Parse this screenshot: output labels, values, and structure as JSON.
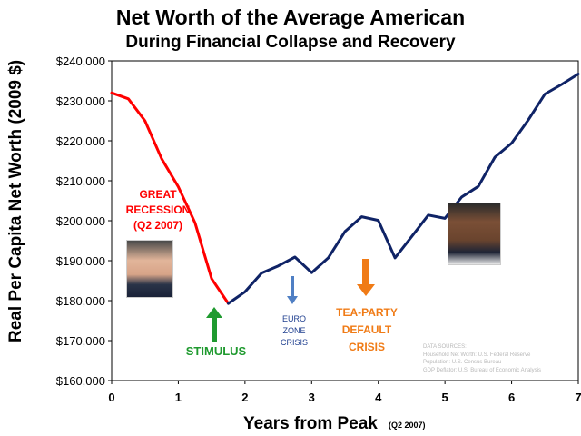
{
  "chart_data": {
    "type": "line",
    "title": "Net Worth of the Average American",
    "subtitle": "During Financial Collapse and Recovery",
    "xlabel": "Years from Peak",
    "xlabel_note": "(Q2 2007)",
    "ylabel": "Real Per Capita Net Worth (2009 $)",
    "xlim": [
      0,
      7
    ],
    "ylim": [
      160000,
      240000
    ],
    "xticks": [
      "0",
      "1",
      "2",
      "3",
      "4",
      "5",
      "6",
      "7"
    ],
    "xtick_values": [
      0,
      1,
      2,
      3,
      4,
      5,
      6,
      7
    ],
    "yticks": [
      "$160,000",
      "$170,000",
      "$180,000",
      "$190,000",
      "$200,000",
      "$210,000",
      "$220,000",
      "$230,000",
      "$240,000"
    ],
    "ytick_values": [
      160000,
      170000,
      180000,
      190000,
      200000,
      210000,
      220000,
      230000,
      240000
    ],
    "grid": false,
    "series": [
      {
        "color": "#ff0000",
        "x": [
          0,
          0.25,
          0.5,
          0.75,
          1.0,
          1.25,
          1.5,
          1.75
        ],
        "y": [
          232000,
          230500,
          225000,
          215500,
          208500,
          199500,
          185500,
          179300
        ]
      },
      {
        "color": "#0f2366",
        "x": [
          1.75,
          2.0,
          2.25,
          2.5,
          2.75,
          3.0,
          3.25,
          3.5,
          3.75,
          4.0,
          4.25,
          4.5,
          4.75,
          5.0,
          5.25,
          5.5,
          5.75,
          6.0,
          6.25,
          6.5,
          6.75,
          7.0
        ],
        "y": [
          179300,
          182200,
          186900,
          188700,
          190900,
          187000,
          190700,
          197300,
          201000,
          200100,
          190700,
          196000,
          201400,
          200600,
          205900,
          208600,
          215900,
          219400,
          225200,
          231700,
          234100,
          236700
        ]
      }
    ],
    "annotations": {
      "great_recession": [
        "GREAT",
        "RECESSION",
        "(Q2 2007)"
      ],
      "stimulus": "STIMULUS",
      "euro_zone": [
        "EURO",
        "ZONE",
        "CRISIS"
      ],
      "tea_party": [
        "TEA-PARTY",
        "DEFAULT",
        "CRISIS"
      ],
      "sources": [
        "DATA SOURCES:",
        "Household Net Worth: U.S. Federal Reserve",
        "Population: U.S. Census Bureau",
        "GDP Deflator: U.S. Bureau of Economic Analysis"
      ]
    },
    "colors": {
      "recession_line": "#ff0000",
      "recovery_line": "#0f2366",
      "stimulus_arrow": "#1f9a2f",
      "euro_arrow": "#4f7fc4",
      "tea_arrow": "#f07b16"
    }
  }
}
